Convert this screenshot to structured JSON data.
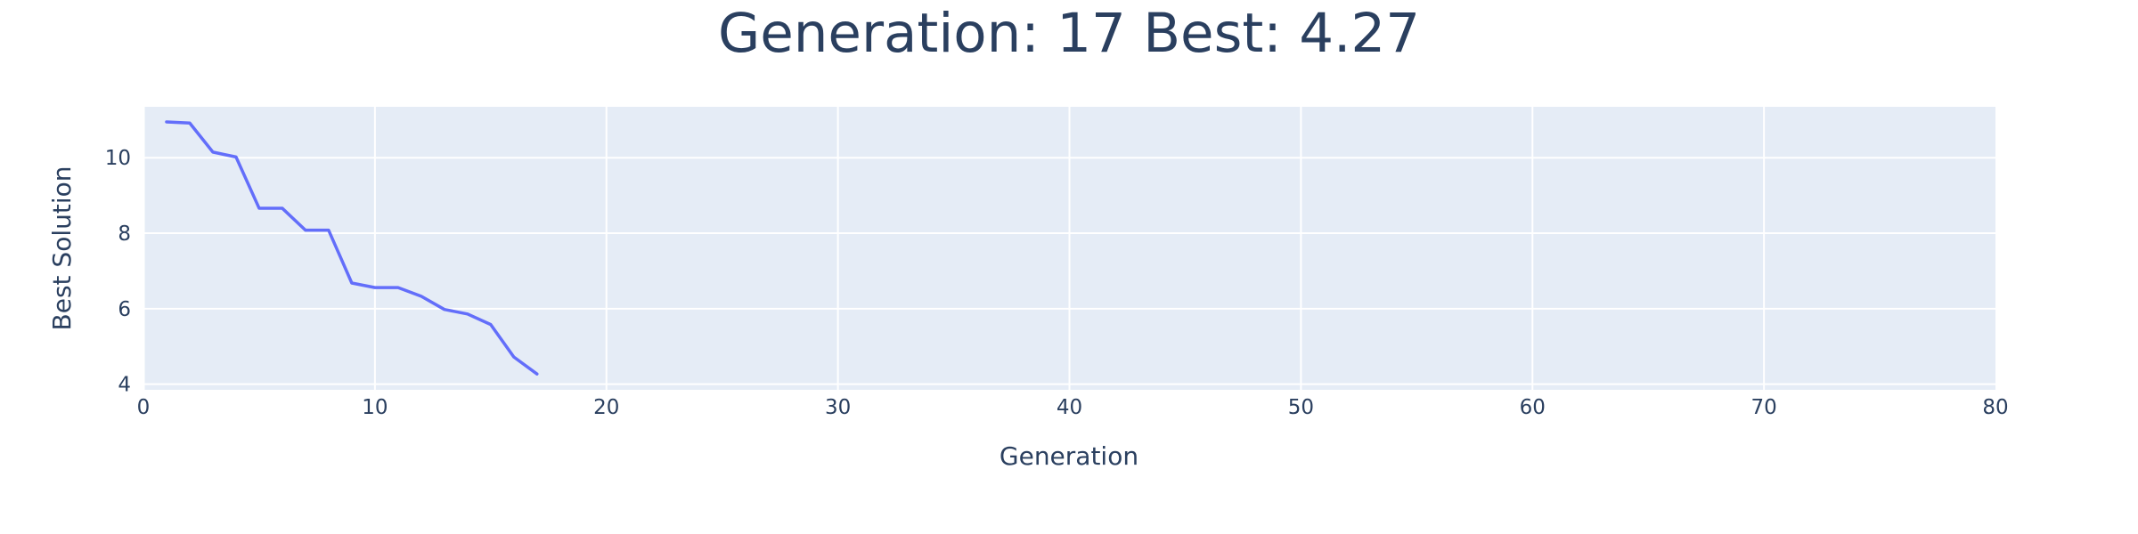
{
  "chart_data": {
    "type": "line",
    "title": "Generation: 17 Best: 4.27",
    "xlabel": "Generation",
    "ylabel": "Best Solution",
    "xlim": [
      0,
      80
    ],
    "ylim": [
      3.85,
      11.35
    ],
    "x_ticks": [
      0,
      10,
      20,
      30,
      40,
      50,
      60,
      70,
      80
    ],
    "y_ticks": [
      4,
      6,
      8,
      10
    ],
    "grid": true,
    "legend": "none",
    "series": [
      {
        "color": "#636efa",
        "x": [
          1,
          2,
          3,
          4,
          5,
          6,
          7,
          8,
          9,
          10,
          11,
          12,
          13,
          14,
          15,
          16,
          17
        ],
        "y": [
          10.95,
          10.92,
          10.15,
          10.02,
          8.66,
          8.66,
          8.08,
          8.08,
          6.68,
          6.56,
          6.56,
          6.33,
          5.98,
          5.86,
          5.58,
          4.72,
          4.27
        ]
      }
    ]
  }
}
